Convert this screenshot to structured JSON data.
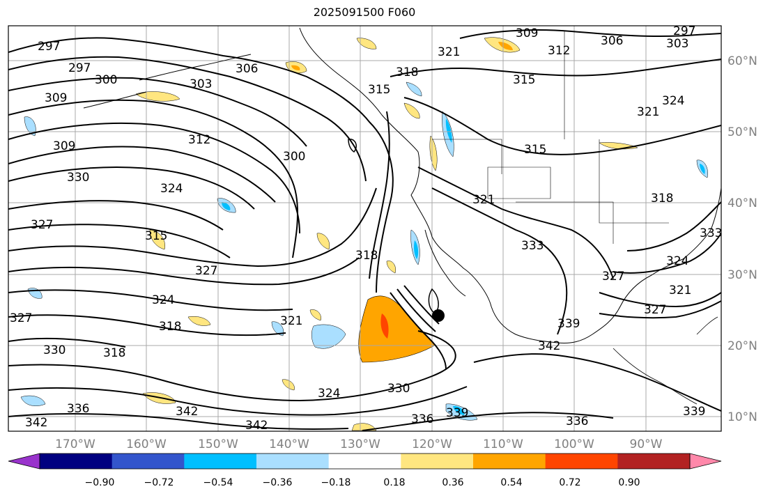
{
  "title": "2025091500 F060",
  "lat_ticks": [
    "60°N",
    "50°N",
    "40°N",
    "30°N",
    "20°N",
    "10°N"
  ],
  "lon_ticks": [
    "170°W",
    "160°W",
    "150°W",
    "140°W",
    "130°W",
    "120°W",
    "110°W",
    "100°W",
    "90°W"
  ],
  "colorbar": {
    "colors": [
      "#9933cc",
      "#000080",
      "#3355cc",
      "#00bfff",
      "#aadfff",
      "#ffffff",
      "#ffe680",
      "#ffa500",
      "#ff4500",
      "#b22222",
      "#ff88aa"
    ],
    "labels": [
      "−0.90",
      "−0.72",
      "−0.54",
      "−0.36",
      "−0.18",
      "0.18",
      "0.36",
      "0.54",
      "0.72",
      "0.90"
    ]
  },
  "contour_labels": [
    "297",
    "297",
    "300",
    "303",
    "306",
    "309",
    "309",
    "312",
    "300",
    "324",
    "330",
    "327",
    "315",
    "327",
    "324",
    "318",
    "318",
    "330",
    "336",
    "342",
    "342",
    "321",
    "318",
    "318",
    "315",
    "321",
    "309",
    "312",
    "306",
    "303",
    "297",
    "315",
    "321",
    "324",
    "315",
    "321",
    "318",
    "333",
    "324",
    "327",
    "321",
    "327",
    "339",
    "342",
    "330",
    "324",
    "336",
    "339",
    "336",
    "339",
    "342",
    "327",
    "333"
  ],
  "marker": "storm-center-dot"
}
